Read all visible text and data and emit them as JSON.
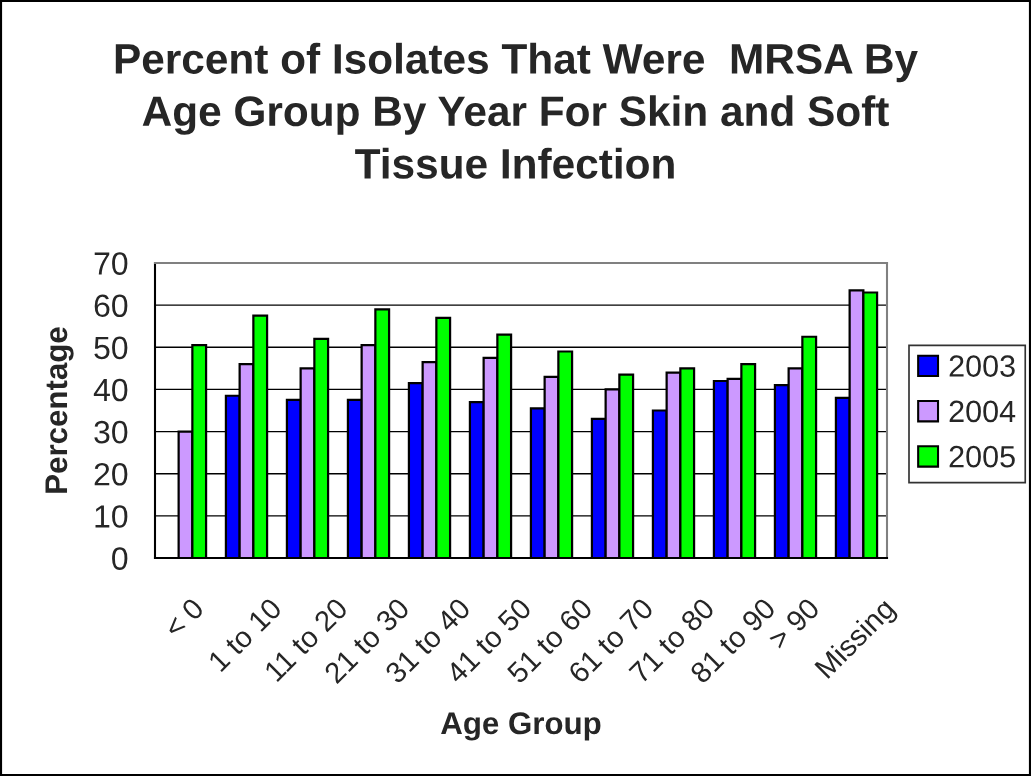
{
  "chart_data": {
    "type": "bar",
    "title": "Percent of Isolates That Were  MRSA By\nAge Group By Year For Skin and Soft\nTissue Infection",
    "xlabel": "Age Group",
    "ylabel": "Percentage",
    "categories": [
      "< 0",
      "1 to 10",
      "11 to 20",
      "21 to 30",
      "31 to 40",
      "41 to 50",
      "51 to 60",
      "61 to 70",
      "71 to 80",
      "81 to 90",
      "> 90",
      "Missing"
    ],
    "series": [
      {
        "name": "2003",
        "color": "#0000ff",
        "values": [
          null,
          38.5,
          37.5,
          37.5,
          41.5,
          37,
          35.5,
          33,
          35,
          42,
          41,
          38
        ]
      },
      {
        "name": "2004",
        "color": "#cc99ff",
        "values": [
          30,
          46,
          45,
          50.5,
          46.5,
          47.5,
          43,
          40,
          44,
          42.5,
          45,
          63.5
        ]
      },
      {
        "name": "2005",
        "color": "#00ff00",
        "values": [
          50.5,
          57.5,
          52,
          59,
          57,
          53,
          49,
          43.5,
          45,
          46,
          52.5,
          63
        ]
      }
    ],
    "ylim": [
      0,
      70
    ],
    "yticks": [
      0,
      10,
      20,
      30,
      40,
      50,
      60,
      70
    ],
    "grid": "y",
    "legend": "right"
  }
}
